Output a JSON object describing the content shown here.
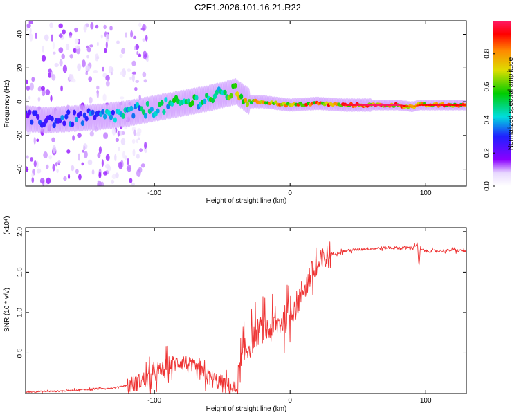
{
  "figure_title": "C2E1.2026.101.16.21.R22",
  "chart_data": [
    {
      "type": "heatmap",
      "name": "spectrogram",
      "xlabel": "Height of straight line (km)",
      "ylabel": "Frequency (Hz)",
      "xlim": [
        -195,
        130
      ],
      "ylim": [
        -50,
        48
      ],
      "xticks": [
        -100,
        0,
        100
      ],
      "yticks": [
        -40,
        -20,
        0,
        20,
        40
      ],
      "colorbar": {
        "label": "Normalized spectral amplitude",
        "range": [
          0,
          1
        ],
        "ticks": [
          0.0,
          0.2,
          0.4,
          0.6,
          0.8
        ]
      },
      "ridge": {
        "x": [
          -195,
          -180,
          -160,
          -140,
          -120,
          -100,
          -80,
          -60,
          -50,
          -40,
          -35,
          -30,
          -20,
          -10,
          0,
          20,
          40,
          60,
          80,
          90,
          95,
          110,
          130
        ],
        "freq": [
          -10,
          -11,
          -10,
          -9,
          -7,
          -4,
          -1,
          2,
          4,
          6,
          3,
          0,
          0,
          -1,
          -2,
          -1,
          -2,
          -2,
          -2,
          -3,
          -2,
          -2,
          -2
        ],
        "peak_amplitude": [
          0.3,
          0.35,
          0.4,
          0.45,
          0.5,
          0.55,
          0.6,
          0.6,
          0.65,
          0.8,
          0.85,
          0.85,
          0.9,
          0.9,
          0.95,
          0.9,
          0.95,
          1.0,
          1.0,
          0.8,
          0.9,
          0.95,
          0.9
        ]
      }
    },
    {
      "type": "line",
      "name": "snr",
      "xlabel": "Height of straight line (km)",
      "ylabel": "SNR (10 * v/v)",
      "scale_label": "(x10⁴)",
      "xlim": [
        -195,
        130
      ],
      "ylim": [
        0,
        2.05
      ],
      "xticks": [
        -100,
        0,
        100
      ],
      "yticks": [
        0.5,
        1.0,
        1.5,
        2.0
      ],
      "series": [
        {
          "name": "SNR",
          "color": "#ee3333",
          "x": [
            -195,
            -170,
            -150,
            -130,
            -115,
            -100,
            -90,
            -80,
            -70,
            -60,
            -50,
            -40,
            -35,
            -30,
            -25,
            -20,
            -15,
            -10,
            -5,
            0,
            5,
            10,
            15,
            20,
            25,
            30,
            40,
            50,
            60,
            70,
            80,
            90,
            94,
            95,
            96,
            100,
            110,
            120,
            130
          ],
          "y": [
            0.02,
            0.03,
            0.05,
            0.07,
            0.12,
            0.22,
            0.35,
            0.4,
            0.3,
            0.2,
            0.12,
            0.05,
            0.45,
            0.6,
            0.75,
            0.8,
            0.78,
            0.85,
            0.9,
            1.0,
            1.1,
            1.3,
            1.45,
            1.55,
            1.65,
            1.72,
            1.76,
            1.78,
            1.79,
            1.8,
            1.8,
            1.8,
            1.85,
            1.55,
            1.78,
            1.76,
            1.76,
            1.77,
            1.76
          ]
        }
      ]
    }
  ]
}
